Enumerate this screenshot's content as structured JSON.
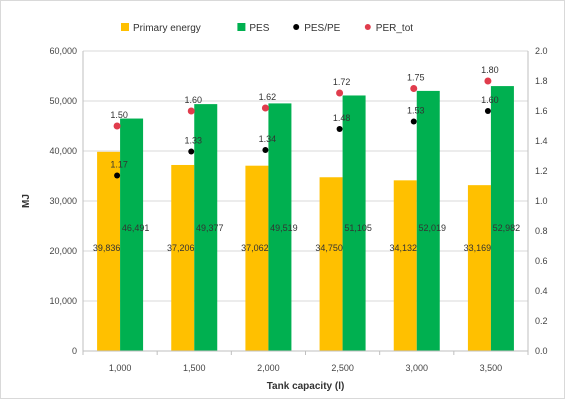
{
  "chart_data": {
    "type": "bar",
    "categories": [
      "1,000",
      "1,500",
      "2,000",
      "2,500",
      "3,000",
      "3,500"
    ],
    "series": [
      {
        "name": "Primary energy",
        "axis": "left",
        "kind": "bar",
        "color": "#FFC000",
        "values": [
          39836,
          37206,
          37062,
          34750,
          34132,
          33169
        ],
        "labels": [
          "39,836",
          "37,206",
          "37,062",
          "34,750",
          "34,132",
          "33,169"
        ]
      },
      {
        "name": "PES",
        "axis": "left",
        "kind": "bar",
        "color": "#00B050",
        "values": [
          46491,
          49377,
          49519,
          51105,
          52019,
          52982
        ],
        "labels": [
          "46,491",
          "49,377",
          "49,519",
          "51,105",
          "52,019",
          "52,982"
        ]
      },
      {
        "name": "PES/PE",
        "axis": "right",
        "kind": "point",
        "color": "#000000",
        "values": [
          1.17,
          1.33,
          1.34,
          1.48,
          1.53,
          1.6
        ],
        "labels": [
          "1.17",
          "1.33",
          "1.34",
          "1.48",
          "1.53",
          "1.60"
        ]
      },
      {
        "name": "PER_tot",
        "axis": "right",
        "kind": "point",
        "color": "#E03C4C",
        "values": [
          1.5,
          1.6,
          1.62,
          1.72,
          1.75,
          1.8
        ],
        "labels": [
          "1.50",
          "1.60",
          "1.62",
          "1.72",
          "1.75",
          "1.80"
        ]
      }
    ],
    "xlabel": "Tank capacity (l)",
    "ylabel": "MJ",
    "ylim": [
      0,
      60000
    ],
    "y_ticks": [
      "0",
      "10,000",
      "20,000",
      "30,000",
      "40,000",
      "50,000",
      "60,000"
    ],
    "y2lim": [
      0,
      2.0
    ],
    "y2_ticks": [
      "0.0",
      "0.2",
      "0.4",
      "0.6",
      "0.8",
      "1.0",
      "1.2",
      "1.4",
      "1.6",
      "1.8",
      "2.0"
    ],
    "grid": true,
    "legend_position": "top"
  }
}
